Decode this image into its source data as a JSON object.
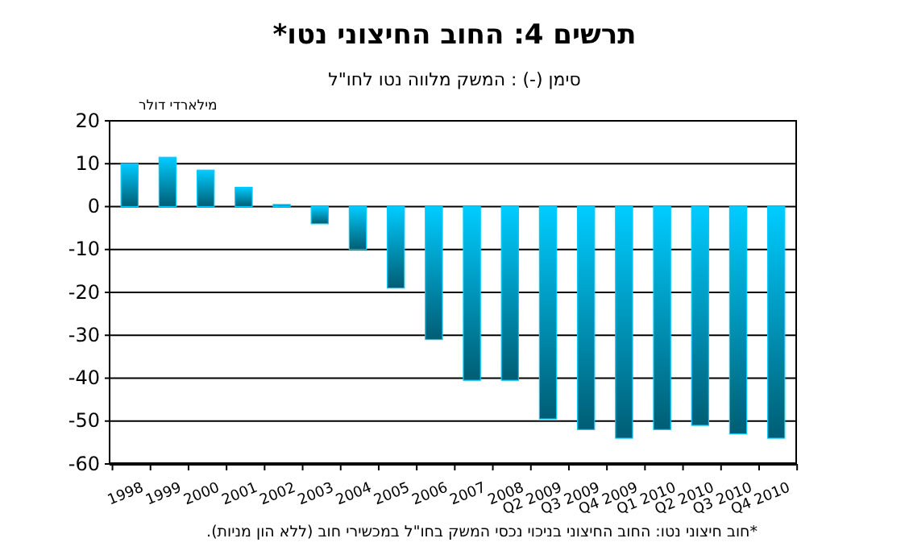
{
  "chart_data": {
    "type": "bar",
    "title": "תרשים 4: החוב החיצוני נטו*",
    "subtitle": "סימן (-) : המשק מלווה נטו לחו\"ל",
    "ylabel": "מילארדי דולר",
    "annotations": [
      "*חוב חיצוני נטו: החוב החיצוני בניכוי נכסי המשק בחו\"ל במכשירי חוב (ללא הון מניות)."
    ],
    "categories": [
      "1998",
      "1999",
      "2000",
      "2001",
      "2002",
      "2003",
      "2004",
      "2005",
      "2006",
      "2007",
      "2008",
      "Q2 2009",
      "Q3 2009",
      "Q4 2009",
      "Q1 2010",
      "Q2 2010",
      "Q3 2010",
      "Q4 2010"
    ],
    "values": [
      10,
      11.5,
      8.5,
      4.5,
      0.5,
      -4,
      -10,
      -19,
      -31,
      -40.5,
      -40.5,
      -49.5,
      -52,
      -54,
      -52,
      -51,
      -53,
      -54
    ],
    "color": "#00ccff",
    "ylim": [
      -60,
      20
    ],
    "yticks": [
      -60,
      -50,
      -40,
      -30,
      -20,
      -10,
      0,
      10,
      20
    ],
    "grid": "y"
  }
}
